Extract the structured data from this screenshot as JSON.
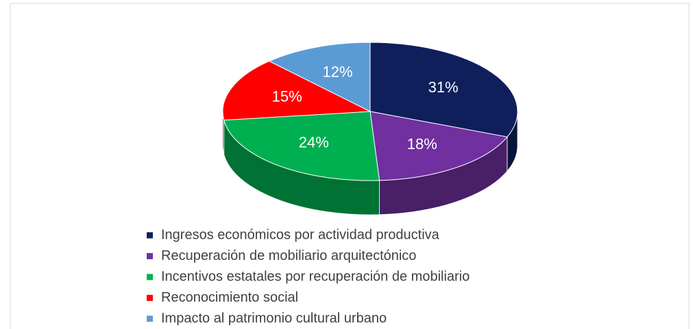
{
  "chart_data": {
    "type": "pie",
    "categories": [
      "Ingresos económicos por actividad productiva",
      "Recuperación de mobiliario arquitectónico",
      "Incentivos estatales por recuperación de mobiliario",
      "Reconocimiento social",
      "Impacto al patrimonio cultural urbano"
    ],
    "values": [
      31,
      18,
      24,
      15,
      12
    ],
    "value_labels": [
      "31%",
      "18%",
      "24%",
      "15%",
      "12%"
    ],
    "colors": [
      "#0e1f5b",
      "#7030a0",
      "#00b050",
      "#ff0000",
      "#5b9bd5"
    ],
    "legend": "bottom"
  }
}
